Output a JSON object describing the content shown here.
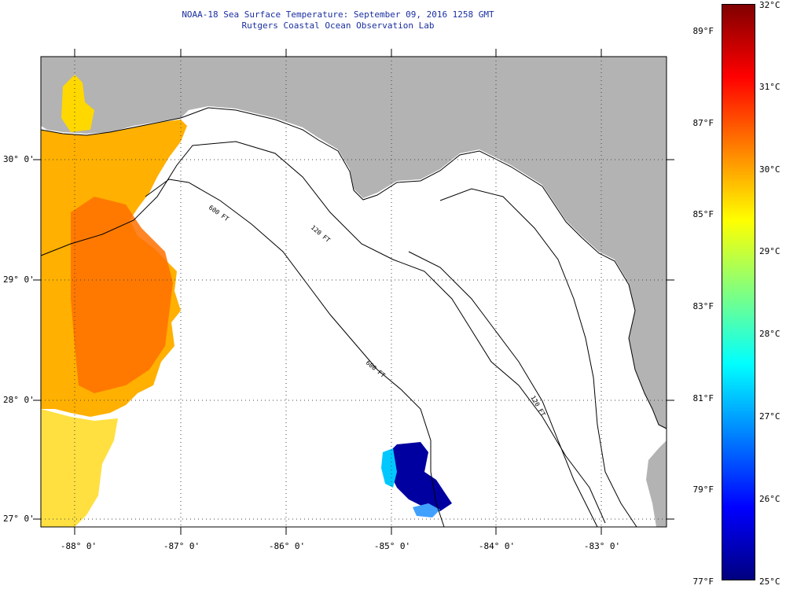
{
  "title": {
    "line1": "NOAA-18 Sea Surface Temperature:  September 09, 2016 1258 GMT",
    "line2": "Rutgers Coastal Ocean Observation Lab"
  },
  "map": {
    "lat_labels": [
      "30° 0'",
      "29° 0'",
      "28° 0'",
      "27° 0'"
    ],
    "lon_labels": [
      "-88° 0'",
      "-87° 0'",
      "-86° 0'",
      "-85° 0'",
      "-84° 0'",
      "-83° 0'"
    ],
    "isobath_labels": [
      "600 FT",
      "120 FT",
      "600 FT",
      "120 FT"
    ],
    "colors": {
      "land": "#b3b3b3",
      "water_nodata": "#ffffff"
    }
  },
  "colorbar": {
    "fahrenheit_labels": [
      "89°F",
      "87°F",
      "85°F",
      "83°F",
      "81°F",
      "79°F",
      "77°F"
    ],
    "celsius_labels": [
      "32°C",
      "31°C",
      "30°C",
      "29°C",
      "28°C",
      "27°C",
      "26°C",
      "25°C"
    ],
    "range_celsius": [
      25,
      32
    ],
    "stops": [
      "#000080",
      "#0000ff",
      "#0080ff",
      "#00ffff",
      "#80ff80",
      "#ffff00",
      "#ff8000",
      "#ff0000",
      "#800000"
    ]
  }
}
